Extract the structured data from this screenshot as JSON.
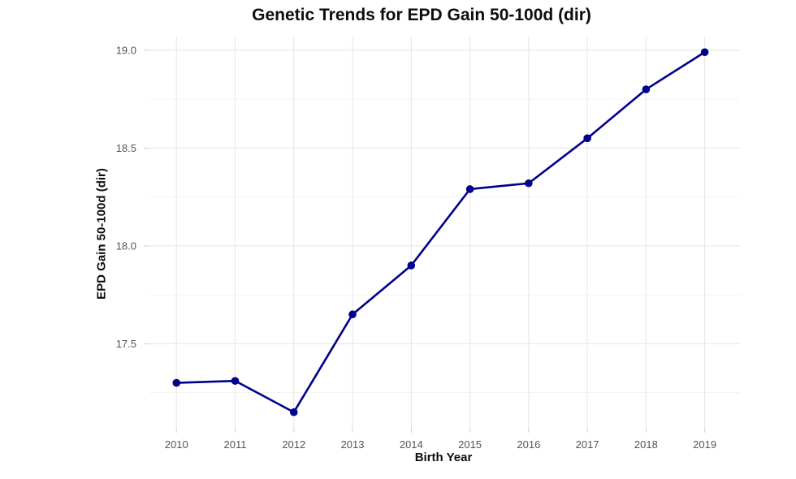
{
  "title": "Genetic Trends for EPD Gain 50-100d (dir)",
  "chart_data": {
    "type": "line",
    "title": "Genetic Trends for EPD Gain 50-100d (dir)",
    "xlabel": "Birth Year",
    "ylabel": "EPD Gain 50-100d (dir)",
    "x": [
      2010,
      2011,
      2012,
      2013,
      2014,
      2015,
      2016,
      2017,
      2018,
      2019
    ],
    "series": [
      {
        "name": "EPD Gain 50-100d (dir)",
        "values": [
          17.3,
          17.31,
          17.15,
          17.65,
          17.9,
          18.29,
          18.32,
          18.55,
          18.8,
          18.99
        ]
      }
    ],
    "x_ticks": [
      2010,
      2011,
      2012,
      2013,
      2014,
      2015,
      2016,
      2017,
      2018,
      2019
    ],
    "y_ticks": [
      17.5,
      18.0,
      18.5,
      19.0
    ],
    "y_minor_gridlines": [
      17.25,
      17.75,
      18.25,
      18.75
    ],
    "xlim": [
      2009.54,
      2019.6
    ],
    "ylim": [
      17.07,
      19.07
    ],
    "grid": "major-and-minor-horizontal, major-vertical",
    "legend": "none",
    "colors": {
      "line": "#00008B",
      "point": "#00008B",
      "grid_major": "#e5e5e5",
      "grid_minor": "#f3f3f3",
      "tick_mark": "#d2d2d2",
      "tick_label": "#555555",
      "axis_text": "#0d0d0d",
      "background": "#ffffff"
    }
  }
}
